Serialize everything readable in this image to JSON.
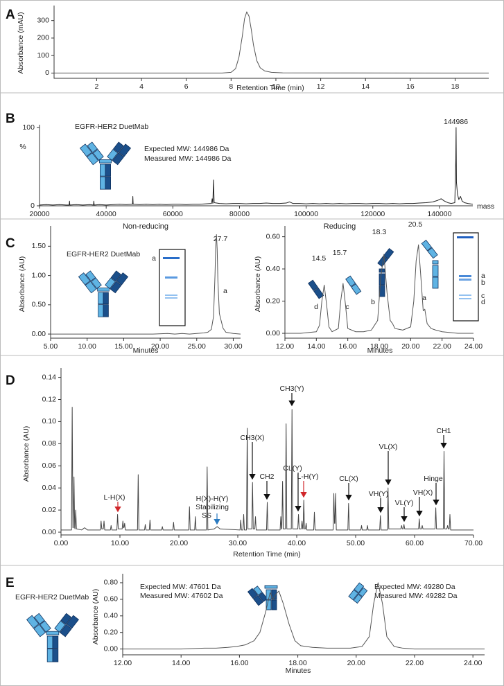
{
  "chart_data": [
    {
      "type": "line",
      "panel": "A",
      "x_label": "Retention Time (min)",
      "y_label": "Absorbance (mAU)",
      "color": "#555555",
      "x": [
        0.1,
        7.6,
        8.0,
        8.2,
        8.35,
        8.5,
        8.6,
        8.7,
        8.8,
        8.9,
        9.0,
        9.15,
        9.3,
        9.5,
        9.8,
        10.3,
        19.5
      ],
      "values": [
        0,
        0,
        4,
        25,
        90,
        210,
        310,
        350,
        325,
        250,
        160,
        70,
        30,
        12,
        4,
        1,
        0
      ],
      "xlim": [
        0.1,
        19.5
      ],
      "ylim": [
        -30,
        370
      ],
      "xticks": [
        2,
        4,
        6,
        8,
        10,
        12,
        14,
        16,
        18
      ],
      "yticks": [
        0,
        100,
        200,
        300
      ]
    },
    {
      "type": "line",
      "panel": "B",
      "x_label": "mass",
      "y_label": "%",
      "color": "#222222",
      "annotations": [
        "EGFR-HER2 DuetMab",
        "Expected MW: 144986 Da",
        "Measured MW: 144986 Da",
        "144986"
      ],
      "x": [
        20000,
        22000,
        24000,
        26000,
        28000,
        28900,
        29000,
        29100,
        31000,
        33000,
        35000,
        36200,
        36300,
        36400,
        38000,
        40000,
        42000,
        44000,
        46000,
        47900,
        48000,
        48100,
        50000,
        52000,
        54000,
        56000,
        58000,
        60000,
        62000,
        64000,
        66000,
        68000,
        70000,
        71600,
        71800,
        72000,
        72200,
        72400,
        74000,
        76000,
        78000,
        80000,
        82000,
        84000,
        86000,
        88000,
        90000,
        92000,
        94000,
        95000,
        96000,
        98000,
        100000,
        102000,
        104000,
        106000,
        108000,
        110000,
        112000,
        114000,
        116000,
        118000,
        120000,
        122000,
        124000,
        126000,
        128000,
        130000,
        132000,
        134000,
        136000,
        138000,
        139500,
        140500,
        141500,
        142500,
        143500,
        144600,
        144900,
        144986,
        145100,
        145400,
        145800,
        146300,
        146800,
        147500,
        148500,
        150000
      ],
      "values": [
        1,
        1.5,
        1,
        1.5,
        1,
        1,
        6,
        1,
        1.5,
        1,
        1.5,
        1,
        6,
        1,
        1.5,
        1,
        1.5,
        2,
        1.5,
        2,
        12,
        2,
        1.5,
        2,
        1.5,
        2,
        1.5,
        2,
        2,
        1.5,
        2,
        2,
        2.5,
        3,
        9,
        3,
        33,
        4,
        3,
        2.5,
        3,
        3,
        2.5,
        3,
        3,
        3.5,
        3,
        3,
        3.5,
        5,
        3,
        3,
        2.5,
        3,
        2.5,
        3,
        2.5,
        3,
        2.5,
        3,
        3,
        2.5,
        3,
        3,
        2.5,
        3,
        2.5,
        3,
        3,
        3.5,
        4,
        5,
        7,
        9,
        6,
        4,
        3,
        4,
        60,
        100,
        30,
        15,
        8,
        12,
        6,
        4,
        3,
        2
      ],
      "xlim": [
        20000,
        150000
      ],
      "ylim": [
        0,
        100
      ],
      "xticks": [
        20000,
        40000,
        60000,
        80000,
        100000,
        120000,
        140000
      ],
      "yticks": [
        0,
        100
      ]
    },
    {
      "type": "line",
      "panel": "C",
      "title": "Non-reducing",
      "x_label": "Minutes",
      "y_label": "Absorbance (AU)",
      "color": "#555555",
      "annotations": [
        "27.7",
        "a",
        "EGFR-HER2 DuetMab",
        "a"
      ],
      "x": [
        5,
        7,
        9,
        11,
        13,
        15,
        17,
        19,
        21,
        22,
        23,
        24,
        25,
        26,
        26.5,
        27,
        27.3,
        27.5,
        27.6,
        27.7,
        27.8,
        27.9,
        28.1,
        28.3,
        28.6,
        29,
        30,
        31
      ],
      "values": [
        0,
        0,
        0,
        0,
        0,
        0,
        0,
        0,
        0.01,
        0,
        0.01,
        0,
        0.01,
        0.02,
        0.03,
        0.08,
        0.3,
        1.0,
        1.5,
        1.7,
        1.45,
        0.9,
        0.35,
        0.25,
        0.1,
        0.03,
        0.01,
        0
      ],
      "xlim": [
        5,
        31
      ],
      "ylim": [
        -0.07,
        1.8
      ],
      "xticks": [
        {
          "value": 5,
          "label": "5.00"
        },
        {
          "value": 10,
          "label": "10.00"
        },
        {
          "value": 15,
          "label": "15.00"
        },
        {
          "value": 20,
          "label": "20.00"
        },
        {
          "value": 25,
          "label": "25.00"
        },
        {
          "value": 30,
          "label": "30.00"
        }
      ],
      "yticks": [
        {
          "value": 0,
          "label": "0.00"
        },
        {
          "value": 0.5,
          "label": "0.50"
        },
        {
          "value": 1,
          "label": "1.00"
        },
        {
          "value": 1.5,
          "label": "1.50"
        }
      ]
    },
    {
      "type": "line",
      "title": "Reducing",
      "x_label": "Minutes",
      "y_label": "Absorbance (AU)",
      "color": "#555555",
      "annotations": [
        "14.5",
        "15.7",
        "18.3",
        "20.5",
        "d",
        "c",
        "b",
        "a",
        "a",
        "b",
        "c",
        "d"
      ],
      "x": [
        12,
        13,
        14,
        14.2,
        14.35,
        14.5,
        14.65,
        14.8,
        15,
        15.4,
        15.55,
        15.7,
        15.85,
        16,
        16.5,
        17,
        17.5,
        17.9,
        18.1,
        18.3,
        18.5,
        18.7,
        18.85,
        19,
        19.5,
        20,
        20.2,
        20.35,
        20.5,
        20.65,
        20.8,
        20.9,
        21.05,
        21.3,
        21.6,
        22,
        23,
        24
      ],
      "values": [
        0,
        0,
        0.01,
        0.05,
        0.2,
        0.3,
        0.18,
        0.04,
        0.01,
        0.03,
        0.2,
        0.31,
        0.18,
        0.03,
        0.01,
        0.01,
        0.02,
        0.08,
        0.35,
        0.49,
        0.25,
        0.08,
        0.06,
        0.03,
        0.02,
        0.04,
        0.2,
        0.45,
        0.55,
        0.35,
        0.14,
        0.15,
        0.06,
        0.03,
        0.02,
        0.01,
        0,
        0
      ],
      "xlim": [
        12,
        24
      ],
      "ylim": [
        -0.03,
        0.65
      ],
      "xticks": [
        {
          "value": 12,
          "label": "12.00"
        },
        {
          "value": 14,
          "label": "14.00"
        },
        {
          "value": 16,
          "label": "16.00"
        },
        {
          "value": 18,
          "label": "18.00"
        },
        {
          "value": 20,
          "label": "20.00"
        },
        {
          "value": 22,
          "label": "22.00"
        },
        {
          "value": 24,
          "label": "24.00"
        }
      ],
      "yticks": [
        {
          "value": 0,
          "label": "0.00"
        },
        {
          "value": 0.2,
          "label": "0.20"
        },
        {
          "value": 0.4,
          "label": "0.40"
        },
        {
          "value": 0.6,
          "label": "0.60"
        }
      ]
    },
    {
      "type": "line",
      "panel": "D",
      "x_label": "Retention Time (min)",
      "y_label": "Absorbance (AU)",
      "color": "#444444",
      "annotations": [
        "L-H(X)",
        "H(X)-H(Y)",
        "Stabilizing",
        "SS",
        "CH3(X)",
        "CH2",
        "CH3(Y)",
        "CL(Y)",
        "L-H(Y)",
        "CL(X)",
        "VH(Y)",
        "VL(X)",
        "VL(Y)",
        "VH(X)",
        "Hinge",
        "CH1"
      ],
      "x": [
        0,
        1.78,
        1.9,
        2.02,
        2.08,
        2.2,
        2.32,
        2.38,
        2.5,
        2.62,
        3.5,
        4,
        4.5,
        6.68,
        6.8,
        6.92,
        7.18,
        7.3,
        7.42,
        8.38,
        8.5,
        8.62,
        9.48,
        9.6,
        9.72,
        10.38,
        10.5,
        10.62,
        10.68,
        10.8,
        10.92,
        12.98,
        13.1,
        13.22,
        14.18,
        14.3,
        14.42,
        14.98,
        15.1,
        15.22,
        17.08,
        17.2,
        17.32,
        18.98,
        19.1,
        19.22,
        21.68,
        21.8,
        21.92,
        22.68,
        22.8,
        22.92,
        24.68,
        24.8,
        24.92,
        26,
        26.5,
        27,
        30.38,
        30.5,
        30.62,
        30.88,
        31,
        31.12,
        31.48,
        31.6,
        31.72,
        32.38,
        32.5,
        32.62,
        32.88,
        33,
        33.12,
        34.88,
        35,
        35.12,
        37.18,
        37.3,
        37.42,
        37.48,
        37.6,
        37.72,
        38.08,
        38.2,
        38.32,
        39.08,
        39.2,
        39.32,
        40.18,
        40.3,
        40.42,
        40.78,
        40.9,
        41.02,
        41.08,
        41.2,
        41.32,
        41.48,
        41.6,
        41.72,
        42.88,
        43,
        43.12,
        46.18,
        46.3,
        46.42,
        46.48,
        46.6,
        46.72,
        48.68,
        48.8,
        48.92,
        50.88,
        51,
        51.12,
        51.88,
        52,
        52.12,
        54.08,
        54.2,
        54.32,
        55.38,
        55.5,
        55.62,
        57.68,
        57.8,
        57.92,
        58.08,
        58.2,
        58.32,
        60.68,
        60.8,
        60.92,
        61.18,
        61.3,
        61.42,
        63.48,
        63.6,
        63.72,
        64.88,
        65,
        65.12,
        65.48,
        65.6,
        65.72,
        65.88,
        66,
        66.12,
        70
      ],
      "values": [
        0.002,
        0.002,
        0.113,
        0.004,
        0.004,
        0.05,
        0.004,
        0.003,
        0.02,
        0.003,
        0.002,
        0.004,
        0.002,
        0.002,
        0.01,
        0.003,
        0.003,
        0.01,
        0.002,
        0.002,
        0.006,
        0.002,
        0.002,
        0.016,
        0.003,
        0.003,
        0.01,
        0.004,
        0.004,
        0.008,
        0.002,
        0.002,
        0.052,
        0.002,
        0.002,
        0.007,
        0.002,
        0.002,
        0.011,
        0.002,
        0.002,
        0.005,
        0.002,
        0.002,
        0.009,
        0.002,
        0.002,
        0.023,
        0.002,
        0.002,
        0.014,
        0.002,
        0.002,
        0.059,
        0.002,
        0.003,
        0.005,
        0.003,
        0.002,
        0.011,
        0.002,
        0.002,
        0.016,
        0.002,
        0.002,
        0.094,
        0.003,
        0.003,
        0.045,
        0.003,
        0.003,
        0.014,
        0.002,
        0.002,
        0.027,
        0.002,
        0.002,
        0.014,
        0.003,
        0.003,
        0.046,
        0.003,
        0.003,
        0.098,
        0.003,
        0.003,
        0.111,
        0.003,
        0.003,
        0.016,
        0.003,
        0.003,
        0.01,
        0.003,
        0.003,
        0.029,
        0.003,
        0.003,
        0.008,
        0.002,
        0.002,
        0.018,
        0.002,
        0.002,
        0.035,
        0.008,
        0.008,
        0.035,
        0.002,
        0.002,
        0.026,
        0.002,
        0.002,
        0.006,
        0.002,
        0.002,
        0.006,
        0.002,
        0.002,
        0.015,
        0.002,
        0.002,
        0.04,
        0.003,
        0.003,
        0.006,
        0.003,
        0.003,
        0.007,
        0.003,
        0.003,
        0.012,
        0.003,
        0.003,
        0.006,
        0.003,
        0.003,
        0.022,
        0.003,
        0.003,
        0.073,
        0.003,
        0.003,
        0.006,
        0.003,
        0.003,
        0.016,
        0.002,
        0.002
      ],
      "xlim": [
        0,
        70
      ],
      "ylim": [
        -0.0025,
        0.146
      ],
      "xticks": [
        {
          "value": 0,
          "label": "0.00"
        },
        {
          "value": 10,
          "label": "10.00"
        },
        {
          "value": 20,
          "label": "20.00"
        },
        {
          "value": 30,
          "label": "30.00"
        },
        {
          "value": 40,
          "label": "40.00"
        },
        {
          "value": 50,
          "label": "50.00"
        },
        {
          "value": 60,
          "label": "60.00"
        },
        {
          "value": 70,
          "label": "70.00"
        }
      ],
      "yticks": [
        {
          "value": 0,
          "label": "0.00"
        },
        {
          "value": 0.02,
          "label": "0.02"
        },
        {
          "value": 0.04,
          "label": "0.04"
        },
        {
          "value": 0.06,
          "label": "0.06"
        },
        {
          "value": 0.08,
          "label": "0.08"
        },
        {
          "value": 0.1,
          "label": "0.10"
        },
        {
          "value": 0.12,
          "label": "0.12"
        },
        {
          "value": 0.14,
          "label": "0.14"
        }
      ]
    },
    {
      "type": "line",
      "panel": "E",
      "x_label": "Minutes",
      "y_label": "Absorbance (AU)",
      "color": "#555555",
      "annotations": [
        "EGFR-HER2 DuetMab",
        "Expected MW: 47601 Da",
        "Measured MW: 47602 Da",
        "Expected MW: 49280 Da",
        "Measured MW: 49282 Da"
      ],
      "x": [
        12,
        13,
        14,
        14.8,
        15.2,
        15.6,
        15.9,
        16.2,
        16.5,
        16.7,
        16.9,
        17.05,
        17.15,
        17.25,
        17.35,
        17.5,
        17.7,
        17.9,
        18.1,
        18.5,
        19,
        19.8,
        20.2,
        20.45,
        20.6,
        20.75,
        20.9,
        21.05,
        21.3,
        21.6,
        22,
        23,
        24,
        24.4
      ],
      "values": [
        0,
        0,
        0,
        0.01,
        0.01,
        0.02,
        0.03,
        0.05,
        0.1,
        0.2,
        0.45,
        0.68,
        0.6,
        0.66,
        0.7,
        0.55,
        0.3,
        0.1,
        0.04,
        0.02,
        0.01,
        0.01,
        0.03,
        0.15,
        0.55,
        0.8,
        0.55,
        0.15,
        0.03,
        0.01,
        0,
        0,
        0,
        0
      ],
      "xlim": [
        12,
        24.4
      ],
      "ylim": [
        -0.07,
        0.875
      ],
      "xticks": [
        {
          "value": 12,
          "label": "12.00"
        },
        {
          "value": 14,
          "label": "14.00"
        },
        {
          "value": 16,
          "label": "16.00"
        },
        {
          "value": 18,
          "label": "18.00"
        },
        {
          "value": 20,
          "label": "20.00"
        },
        {
          "value": 22,
          "label": "22.00"
        },
        {
          "value": 24,
          "label": "24.00"
        }
      ],
      "yticks": [
        {
          "value": 0,
          "label": "0.00"
        },
        {
          "value": 0.2,
          "label": "0.20"
        },
        {
          "value": 0.4,
          "label": "0.40"
        },
        {
          "value": 0.6,
          "label": "0.60"
        },
        {
          "value": 0.8,
          "label": "0.80"
        }
      ]
    }
  ]
}
